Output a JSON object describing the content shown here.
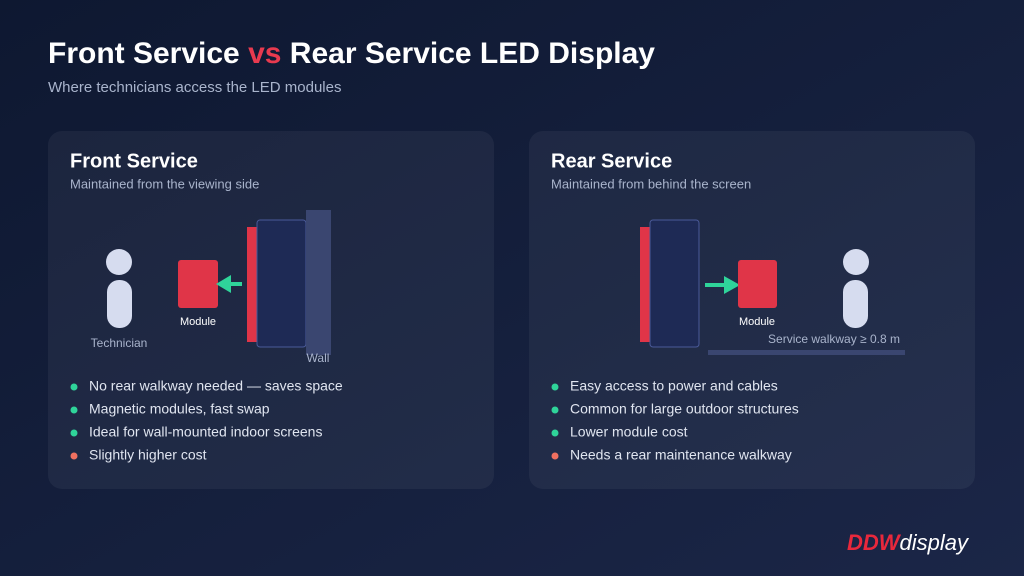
{
  "header": {
    "title_start": "Front Service",
    "title_vs": "vs",
    "title_end": "Rear Service LED Display",
    "subtitle": "Where technicians access the LED modules"
  },
  "panels": [
    {
      "title": "Front Service",
      "subtitle": "Maintained from the viewing side",
      "technician_label": "Technician",
      "module_label": "Module",
      "wall_label": "Wall",
      "bullets": [
        "No rear walkway needed — saves space",
        "Magnetic modules, fast swap",
        "Ideal for wall-mounted indoor screens",
        "Slightly higher cost"
      ]
    },
    {
      "title": "Rear Service",
      "subtitle": "Maintained from behind the screen",
      "module_label": "Module",
      "walkway_label": "Service walkway ≥ 0.8 m",
      "bullets": [
        "Easy access to power and cables",
        "Common for large outdoor structures",
        "Lower module cost",
        "Needs a rear maintenance walkway"
      ]
    }
  ],
  "logo": {
    "brand": "DDW",
    "word": "display"
  }
}
